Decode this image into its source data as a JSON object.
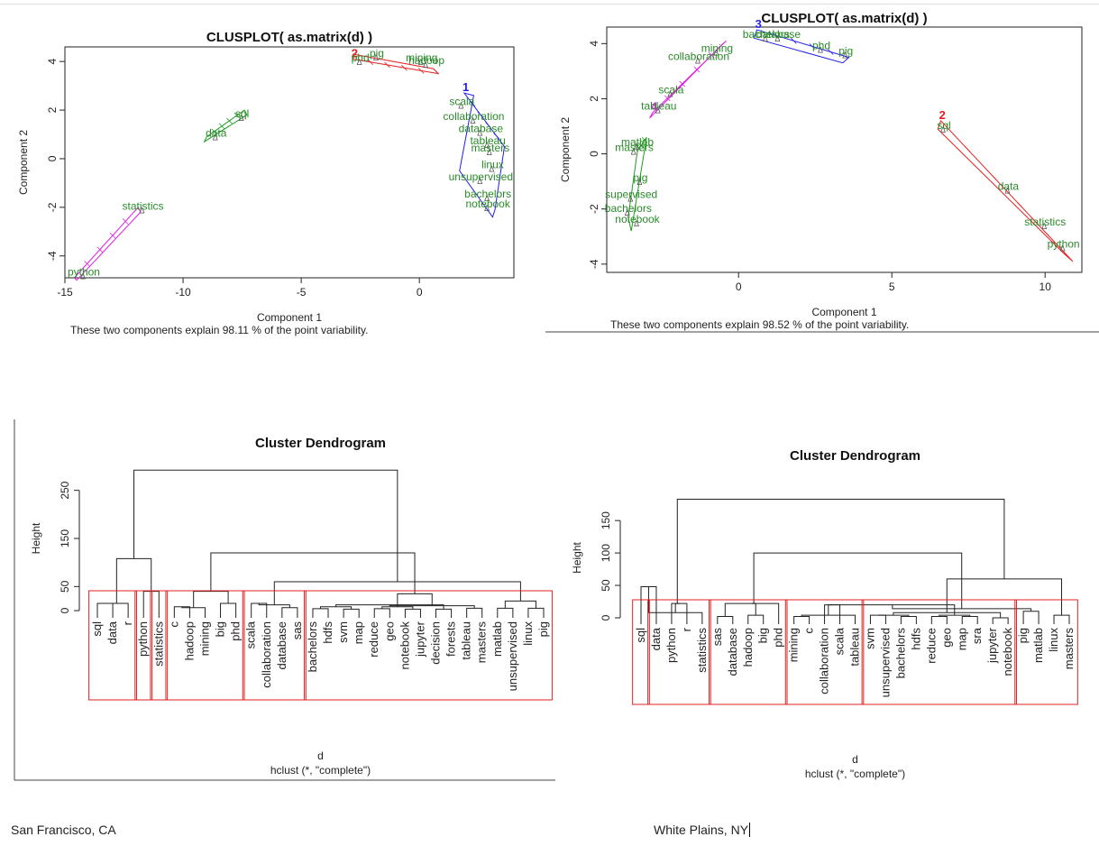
{
  "colors": {
    "cluster1": "#1e1ee6",
    "cluster2": "#e61e1e",
    "cluster3": "#1e9e1e",
    "cluster4": "#e01ee0",
    "label": "#2a8a2a",
    "box": "#e02020",
    "ink": "#222222"
  },
  "chart_data": [
    {
      "type": "scatter",
      "title": "CLUSPLOT( as.matrix(d) )",
      "xlabel": "Component 1",
      "ylabel": "Component 2",
      "subtitle": "These two components explain 98.11 % of the point variability.",
      "xlim": [
        -15,
        4
      ],
      "ylim": [
        -4.9,
        4.6
      ],
      "xticks": [
        -15,
        -10,
        -5,
        0
      ],
      "yticks": [
        -4,
        -2,
        0,
        2,
        4
      ],
      "clusters": [
        {
          "color": "#e61e1e",
          "marker": "2",
          "outline": [
            [
              -2.8,
              4.1
            ],
            [
              0.8,
              3.5
            ],
            [
              0.6,
              3.7
            ],
            [
              -2.8,
              4.3
            ]
          ]
        },
        {
          "color": "#1e9e1e",
          "marker": "",
          "outline": [
            [
              -9,
              0.9
            ],
            [
              -7.4,
              2.0
            ],
            [
              -7.3,
              1.8
            ],
            [
              -9.1,
              0.7
            ]
          ]
        },
        {
          "color": "#1e1ee6",
          "marker": "1",
          "outline": [
            [
              1.9,
              2.7
            ],
            [
              3.6,
              0.5
            ],
            [
              3.2,
              -2.1
            ],
            [
              3.1,
              -2.4
            ],
            [
              1.7,
              -0.5
            ],
            [
              2.3,
              2.6
            ]
          ]
        },
        {
          "color": "#e01ee0",
          "marker": "",
          "outline": [
            [
              -14.6,
              -4.9
            ],
            [
              -11.9,
              -2.0
            ],
            [
              -11.8,
              -2.2
            ],
            [
              -14.5,
              -5.0
            ]
          ]
        }
      ],
      "points": [
        {
          "label": "pig",
          "x": -1.8,
          "y": 4.2
        },
        {
          "label": "phd",
          "x": -2.5,
          "y": 4.0
        },
        {
          "label": "mining",
          "x": 0.1,
          "y": 4.0
        },
        {
          "label": "hadoop",
          "x": 0.3,
          "y": 3.9
        },
        {
          "label": "sql",
          "x": -7.5,
          "y": 1.7
        },
        {
          "label": "data",
          "x": -8.6,
          "y": 0.9
        },
        {
          "label": "statistics",
          "x": -11.7,
          "y": -2.1
        },
        {
          "label": "python",
          "x": -14.2,
          "y": -4.8
        },
        {
          "label": "scala",
          "x": 1.8,
          "y": 2.2
        },
        {
          "label": "collaboration",
          "x": 2.3,
          "y": 1.6
        },
        {
          "label": "database",
          "x": 2.6,
          "y": 1.1
        },
        {
          "label": "tableau",
          "x": 2.9,
          "y": 0.6
        },
        {
          "label": "masters",
          "x": 3.0,
          "y": 0.3
        },
        {
          "label": "linux",
          "x": 3.1,
          "y": -0.4
        },
        {
          "label": "unsupervised",
          "x": 2.6,
          "y": -0.9
        },
        {
          "label": "bachelors",
          "x": 2.9,
          "y": -1.6
        },
        {
          "label": "notebook",
          "x": 2.9,
          "y": -2.0
        }
      ]
    },
    {
      "type": "scatter",
      "title": "CLUSPLOT( as.matrix(d) )",
      "xlabel": "Component 1",
      "ylabel": "Component 2",
      "subtitle": "These two components explain 98.52 % of the point variability.",
      "xlim": [
        -4.3,
        11.2
      ],
      "ylim": [
        -4.3,
        4.6
      ],
      "xticks": [
        0,
        5,
        10
      ],
      "yticks": [
        -4,
        -2,
        0,
        2,
        4
      ],
      "clusters": [
        {
          "color": "#1e1ee6",
          "marker": "3",
          "outline": [
            [
              0.6,
              4.5
            ],
            [
              3.6,
              3.5
            ],
            [
              3.4,
              3.3
            ],
            [
              0.5,
              4.2
            ]
          ]
        },
        {
          "color": "#e01ee0",
          "marker": "4",
          "outline": [
            [
              -2.8,
              1.5
            ],
            [
              -0.4,
              4.1
            ],
            [
              -0.6,
              3.9
            ],
            [
              -2.9,
              1.3
            ]
          ]
        },
        {
          "color": "#1e9e1e",
          "marker": "",
          "outline": [
            [
              -3.3,
              0.1
            ],
            [
              -3.0,
              0.6
            ],
            [
              -3.5,
              -2.8
            ],
            [
              -3.6,
              -2.3
            ]
          ]
        },
        {
          "color": "#e61e1e",
          "marker": "2",
          "outline": [
            [
              6.6,
              1.2
            ],
            [
              10.9,
              -3.9
            ],
            [
              10.6,
              -3.6
            ],
            [
              6.5,
              0.9
            ]
          ]
        }
      ],
      "points": [
        {
          "label": "bachelors",
          "x": 0.9,
          "y": 4.2
        },
        {
          "label": "database",
          "x": 1.3,
          "y": 4.2
        },
        {
          "label": "phd",
          "x": 2.7,
          "y": 3.8
        },
        {
          "label": "pig",
          "x": 3.5,
          "y": 3.6
        },
        {
          "label": "mining",
          "x": -0.7,
          "y": 3.7
        },
        {
          "label": "collaboration",
          "x": -1.3,
          "y": 3.4
        },
        {
          "label": "scala",
          "x": -2.2,
          "y": 2.2
        },
        {
          "label": "tableau",
          "x": -2.6,
          "y": 1.6
        },
        {
          "label": "sql",
          "x": 6.7,
          "y": 0.9
        },
        {
          "label": "data",
          "x": 8.8,
          "y": -1.3
        },
        {
          "label": "statistics",
          "x": 10.0,
          "y": -2.6
        },
        {
          "label": "python",
          "x": 10.6,
          "y": -3.4
        },
        {
          "label": "matlab",
          "x": -3.3,
          "y": 0.3
        },
        {
          "label": "masters",
          "x": -3.4,
          "y": 0.1
        },
        {
          "label": "pig",
          "x": -3.2,
          "y": -1.0
        },
        {
          "label": "supervised",
          "x": -3.5,
          "y": -1.6
        },
        {
          "label": "bachelors",
          "x": -3.6,
          "y": -2.1
        },
        {
          "label": "notebook",
          "x": -3.3,
          "y": -2.5
        }
      ]
    },
    {
      "type": "dendrogram",
      "title": "Cluster Dendrogram",
      "xlabel": "d",
      "subtitle": "hclust (*, \"complete\")",
      "ylabel": "Height",
      "ylim": [
        0,
        300
      ],
      "yticks": [
        0,
        50,
        150,
        250
      ],
      "leaves": [
        "sql",
        "data",
        "r",
        "python",
        "statistics",
        "c",
        "hadoop",
        "mining",
        "big",
        "phd",
        "scala",
        "collaboration",
        "database",
        "sas",
        "bachelors",
        "hdfs",
        "svm",
        "map",
        "reduce",
        "geo",
        "notebook",
        "jupyter",
        "decision",
        "forests",
        "tableau",
        "masters",
        "matlab",
        "unsupervised",
        "linux",
        "pig"
      ],
      "merges": [
        [
          0,
          1,
          15
        ],
        [
          2,
          30,
          15
        ],
        [
          3,
          4,
          40
        ],
        [
          31,
          32,
          108
        ],
        [
          5,
          6,
          8
        ],
        [
          7,
          34,
          6
        ],
        [
          8,
          9,
          15
        ],
        [
          35,
          36,
          40
        ],
        [
          10,
          11,
          15
        ],
        [
          12,
          13,
          6
        ],
        [
          38,
          39,
          12
        ],
        [
          14,
          15,
          4
        ],
        [
          16,
          17,
          3
        ],
        [
          18,
          19,
          4
        ],
        [
          20,
          21,
          3
        ],
        [
          22,
          23,
          3
        ],
        [
          41,
          42,
          8
        ],
        [
          43,
          44,
          8
        ],
        [
          45,
          46,
          12
        ],
        [
          24,
          25,
          5
        ],
        [
          26,
          27,
          5
        ],
        [
          28,
          29,
          5
        ],
        [
          48,
          49,
          10
        ],
        [
          50,
          51,
          20
        ],
        [
          47,
          52,
          35
        ],
        [
          40,
          53,
          60
        ],
        [
          37,
          54,
          120
        ],
        [
          33,
          55,
          292
        ]
      ],
      "boxes": [
        [
          0,
          2
        ],
        [
          3,
          3
        ],
        [
          4,
          4
        ],
        [
          5,
          9
        ],
        [
          10,
          13
        ],
        [
          14,
          29
        ]
      ]
    },
    {
      "type": "dendrogram",
      "title": "Cluster Dendrogram",
      "xlabel": "d",
      "subtitle": "hclust (*, \"complete\")",
      "ylabel": "Height",
      "ylim": [
        0,
        185
      ],
      "yticks": [
        0,
        50,
        100,
        150
      ],
      "leaves": [
        "sql",
        "data",
        "python",
        "r",
        "statistics",
        "sas",
        "database",
        "hadoop",
        "big",
        "phd",
        "mining",
        "c",
        "collaboration",
        "scala",
        "tableau",
        "svm",
        "unsupervised",
        "bachelors",
        "hdfs",
        "reduce",
        "geo",
        "map",
        "sra",
        "jupyter",
        "notebook",
        "pig",
        "matlab",
        "linux",
        "masters"
      ],
      "merges": [
        [
          0,
          1,
          48
        ],
        [
          2,
          3,
          22
        ],
        [
          29,
          4,
          8
        ],
        [
          30,
          31,
          22
        ],
        [
          5,
          6,
          2
        ],
        [
          7,
          8,
          4
        ],
        [
          9,
          33,
          22
        ],
        [
          34,
          35,
          22
        ],
        [
          10,
          11,
          2
        ],
        [
          12,
          13,
          20
        ],
        [
          14,
          37,
          4
        ],
        [
          38,
          39,
          20
        ],
        [
          15,
          16,
          4
        ],
        [
          17,
          18,
          2
        ],
        [
          19,
          20,
          2
        ],
        [
          21,
          22,
          2
        ],
        [
          23,
          24,
          0
        ],
        [
          41,
          42,
          4
        ],
        [
          43,
          44,
          4
        ],
        [
          45,
          46,
          8
        ],
        [
          40,
          47,
          20
        ],
        [
          25,
          26,
          10
        ],
        [
          27,
          28,
          4
        ],
        [
          49,
          50,
          14
        ],
        [
          48,
          51,
          60
        ],
        [
          36,
          52,
          100
        ],
        [
          32,
          53,
          183
        ]
      ],
      "boxes": [
        [
          0,
          0
        ],
        [
          1,
          4
        ],
        [
          5,
          9
        ],
        [
          10,
          14
        ],
        [
          15,
          24
        ],
        [
          25,
          28
        ]
      ]
    }
  ],
  "footer": {
    "left_city": "San Francisco, CA",
    "right_city": "White Plains, NY"
  }
}
